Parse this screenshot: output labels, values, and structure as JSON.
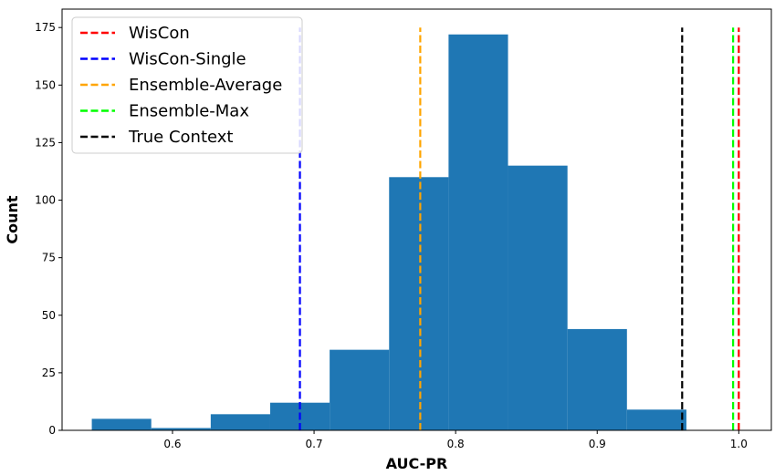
{
  "chart_data": {
    "type": "histogram",
    "xlabel": "AUC-PR",
    "ylabel": "Count",
    "xlim": [
      0.522,
      1.023
    ],
    "ylim": [
      0,
      183
    ],
    "x_ticks": [
      0.6,
      0.7,
      0.8,
      0.9,
      1.0
    ],
    "x_tick_labels": [
      "0.6",
      "0.7",
      "0.8",
      "0.9",
      "1.0"
    ],
    "y_ticks": [
      0,
      25,
      50,
      75,
      100,
      125,
      150,
      175
    ],
    "y_tick_labels": [
      "0",
      "25",
      "50",
      "75",
      "100",
      "125",
      "150",
      "175"
    ],
    "bar_color": "#1f77b4",
    "bins": [
      {
        "x0": 0.543,
        "x1": 0.585,
        "count": 5
      },
      {
        "x0": 0.585,
        "x1": 0.627,
        "count": 1
      },
      {
        "x0": 0.627,
        "x1": 0.669,
        "count": 7
      },
      {
        "x0": 0.669,
        "x1": 0.711,
        "count": 12
      },
      {
        "x0": 0.711,
        "x1": 0.753,
        "count": 35
      },
      {
        "x0": 0.753,
        "x1": 0.795,
        "count": 110
      },
      {
        "x0": 0.795,
        "x1": 0.837,
        "count": 172
      },
      {
        "x0": 0.837,
        "x1": 0.879,
        "count": 115
      },
      {
        "x0": 0.879,
        "x1": 0.921,
        "count": 44
      },
      {
        "x0": 0.921,
        "x1": 0.963,
        "count": 9
      }
    ],
    "vlines": [
      {
        "name": "WisCon",
        "x": 1.0,
        "color": "#ff0000"
      },
      {
        "name": "WisCon-Single",
        "x": 0.69,
        "color": "#0000ff"
      },
      {
        "name": "Ensemble-Average",
        "x": 0.775,
        "color": "#ffa500"
      },
      {
        "name": "Ensemble-Max",
        "x": 0.996,
        "color": "#00ff00"
      },
      {
        "name": "True Context",
        "x": 0.96,
        "color": "#000000"
      }
    ],
    "vline_top": 175,
    "legend_position": "top-left",
    "grid": false
  }
}
